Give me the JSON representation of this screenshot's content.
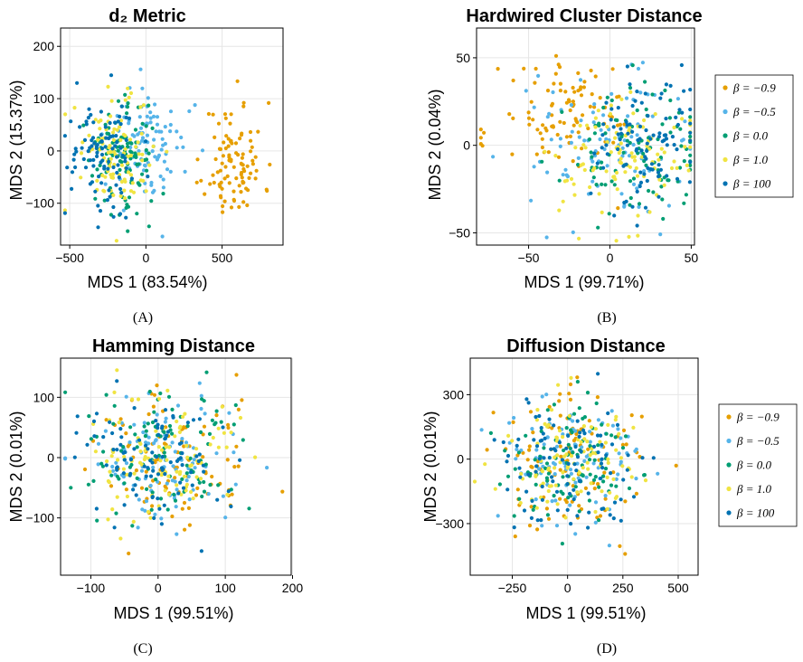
{
  "panels": {
    "A": {
      "title": "d₂ Metric",
      "xlabel": "MDS 1 (83.54%)",
      "ylabel": "MDS 2 (15.37%)",
      "caption": "(A)"
    },
    "B": {
      "title": "Hardwired Cluster Distance",
      "xlabel": "MDS 1 (99.71%)",
      "ylabel": "MDS 2 (0.04%)",
      "caption": "(B)"
    },
    "C": {
      "title": "Hamming Distance",
      "xlabel": "MDS 1 (99.51%)",
      "ylabel": "MDS 2 (0.01%)",
      "caption": "(C)"
    },
    "D": {
      "title": "Diffusion Distance",
      "xlabel": "MDS 1 (99.51%)",
      "ylabel": "MDS 2 (0.01%)",
      "caption": "(D)"
    }
  },
  "legend_entries": [
    "β = −0.9",
    "β = −0.5",
    "β = 0.0",
    "β = 1.0",
    "β = 100"
  ],
  "chart_data": [
    {
      "id": "A",
      "type": "scatter",
      "title": "d₂ Metric",
      "xlabel": "MDS 1 (83.54%)",
      "ylabel": "MDS 2 (15.37%)",
      "xlim": [
        -560,
        900
      ],
      "ylim": [
        -180,
        235
      ],
      "xticks": [
        -500,
        0,
        500
      ],
      "xticklabels": [
        "−500",
        "0",
        "500"
      ],
      "yticks": [
        -100,
        0,
        100,
        200
      ],
      "yticklabels": [
        "−100",
        "0",
        "100",
        "200"
      ],
      "grid": true,
      "legend": "none",
      "series": [
        {
          "beta": "-0.9",
          "color": "#E69F00",
          "center": [
            580,
            -20
          ],
          "spread": [
            130,
            75
          ],
          "count": 100,
          "seed": 11
        },
        {
          "beta": "-0.5",
          "color": "#56B4E9",
          "center": [
            30,
            10
          ],
          "spread": [
            160,
            75
          ],
          "count": 100,
          "seed": 12
        },
        {
          "beta": "0.0",
          "color": "#009E73",
          "center": [
            -150,
            -10
          ],
          "spread": [
            150,
            75
          ],
          "count": 100,
          "seed": 13
        },
        {
          "beta": "1.0",
          "color": "#F0E442",
          "center": [
            -180,
            0
          ],
          "spread": [
            160,
            75
          ],
          "count": 100,
          "seed": 14
        },
        {
          "beta": "100",
          "color": "#0072B2",
          "center": [
            -270,
            0
          ],
          "spread": [
            160,
            75
          ],
          "count": 100,
          "seed": 15
        }
      ]
    },
    {
      "id": "B",
      "type": "scatter",
      "title": "Hardwired Cluster Distance",
      "xlabel": "MDS 1 (99.71%)",
      "ylabel": "MDS 2 (0.04%)",
      "xlim": [
        -82,
        52
      ],
      "ylim": [
        -57,
        67
      ],
      "xticks": [
        -50,
        0,
        50
      ],
      "xticklabels": [
        "−50",
        "0",
        "50"
      ],
      "yticks": [
        -50,
        0,
        50
      ],
      "yticklabels": [
        "−50",
        "0",
        "50"
      ],
      "grid": true,
      "legend": "right",
      "series": [
        {
          "beta": "-0.9",
          "color": "#E69F00",
          "center": [
            -25,
            15
          ],
          "spread": [
            28,
            22
          ],
          "count": 100,
          "seed": 21
        },
        {
          "beta": "-0.5",
          "color": "#56B4E9",
          "center": [
            -5,
            0
          ],
          "spread": [
            30,
            25
          ],
          "count": 100,
          "seed": 22
        },
        {
          "beta": "0.0",
          "color": "#009E73",
          "center": [
            15,
            -5
          ],
          "spread": [
            28,
            22
          ],
          "count": 100,
          "seed": 23
        },
        {
          "beta": "1.0",
          "color": "#F0E442",
          "center": [
            5,
            -8
          ],
          "spread": [
            30,
            25
          ],
          "count": 100,
          "seed": 24
        },
        {
          "beta": "100",
          "color": "#0072B2",
          "center": [
            25,
            0
          ],
          "spread": [
            22,
            22
          ],
          "count": 100,
          "seed": 25
        }
      ]
    },
    {
      "id": "C",
      "type": "scatter",
      "title": "Hamming Distance",
      "xlabel": "MDS 1 (99.51%)",
      "ylabel": "MDS 2 (0.01%)",
      "xlim": [
        -145,
        198
      ],
      "ylim": [
        -195,
        165
      ],
      "xticks": [
        -100,
        0,
        100,
        200
      ],
      "xticklabels": [
        "−100",
        "0",
        "100",
        "200"
      ],
      "yticks": [
        -100,
        0,
        100
      ],
      "yticklabels": [
        "−100",
        "0",
        "100"
      ],
      "grid": true,
      "legend": "none",
      "series": [
        {
          "beta": "-0.9",
          "color": "#E69F00",
          "center": [
            20,
            -10
          ],
          "spread": [
            80,
            80
          ],
          "count": 100,
          "seed": 31
        },
        {
          "beta": "-0.5",
          "color": "#56B4E9",
          "center": [
            0,
            0
          ],
          "spread": [
            80,
            70
          ],
          "count": 100,
          "seed": 32
        },
        {
          "beta": "0.0",
          "color": "#009E73",
          "center": [
            5,
            5
          ],
          "spread": [
            75,
            70
          ],
          "count": 100,
          "seed": 33
        },
        {
          "beta": "1.0",
          "color": "#F0E442",
          "center": [
            0,
            0
          ],
          "spread": [
            80,
            75
          ],
          "count": 100,
          "seed": 34
        },
        {
          "beta": "100",
          "color": "#0072B2",
          "center": [
            -5,
            0
          ],
          "spread": [
            75,
            70
          ],
          "count": 100,
          "seed": 35
        }
      ]
    },
    {
      "id": "D",
      "type": "scatter",
      "title": "Diffusion Distance",
      "xlabel": "MDS 1 (99.51%)",
      "ylabel": "MDS 2 (0.01%)",
      "xlim": [
        -440,
        590
      ],
      "ylim": [
        -540,
        470
      ],
      "xticks": [
        -250,
        0,
        250,
        500
      ],
      "xticklabels": [
        "−250",
        "0",
        "250",
        "500"
      ],
      "yticks": [
        -300,
        0,
        300
      ],
      "yticklabels": [
        "−300",
        "0",
        "300"
      ],
      "grid": true,
      "legend": "right",
      "series": [
        {
          "beta": "-0.9",
          "color": "#E69F00",
          "center": [
            40,
            -20
          ],
          "spread": [
            230,
            220
          ],
          "count": 100,
          "seed": 41
        },
        {
          "beta": "-0.5",
          "color": "#56B4E9",
          "center": [
            0,
            0
          ],
          "spread": [
            220,
            200
          ],
          "count": 100,
          "seed": 42
        },
        {
          "beta": "0.0",
          "color": "#009E73",
          "center": [
            10,
            10
          ],
          "spread": [
            210,
            200
          ],
          "count": 100,
          "seed": 43
        },
        {
          "beta": "1.0",
          "color": "#F0E442",
          "center": [
            0,
            0
          ],
          "spread": [
            220,
            210
          ],
          "count": 100,
          "seed": 44
        },
        {
          "beta": "100",
          "color": "#0072B2",
          "center": [
            -10,
            0
          ],
          "spread": [
            210,
            200
          ],
          "count": 100,
          "seed": 45
        }
      ]
    }
  ]
}
